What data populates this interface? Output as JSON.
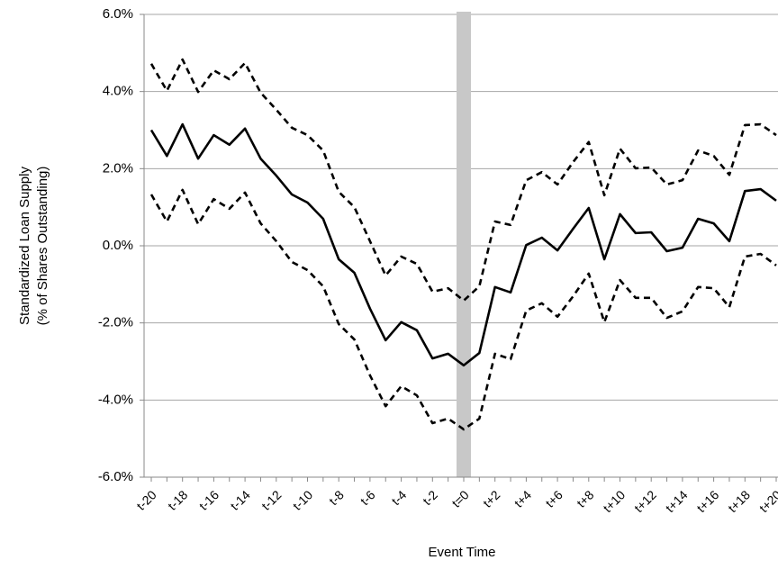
{
  "chart_data": {
    "type": "line",
    "xlabel": "Event Time",
    "ylabel": [
      "Standardized Loan Supply",
      "(% of Shares Outstanding)"
    ],
    "categories": [
      "t-20",
      null,
      "t-18",
      null,
      "t-16",
      null,
      "t-14",
      null,
      "t-12",
      null,
      "t-10",
      null,
      "t-8",
      null,
      "t-6",
      null,
      "t-4",
      null,
      "t-2",
      null,
      "t=0",
      null,
      "t+2",
      null,
      "t+4",
      null,
      "t+6",
      null,
      "t+8",
      null,
      "t+10",
      null,
      "t+12",
      null,
      "t+14",
      null,
      "t+16",
      null,
      "t+18",
      null,
      "t+20"
    ],
    "series": [
      {
        "color": "#000000",
        "dashed": false,
        "values": [
          3.0,
          2.33,
          3.15,
          2.26,
          2.87,
          2.62,
          3.04,
          2.26,
          1.82,
          1.33,
          1.12,
          0.7,
          -0.35,
          -0.7,
          -1.63,
          -2.45,
          -1.98,
          -2.19,
          -2.92,
          -2.8,
          -3.1,
          -2.78,
          -1.07,
          -1.21,
          0.02,
          0.21,
          -0.12,
          0.44,
          0.98,
          -0.35,
          0.82,
          0.33,
          0.35,
          -0.14,
          -0.05,
          0.7,
          0.58,
          0.12,
          1.42,
          1.47,
          1.17
        ]
      },
      {
        "color": "#000000",
        "dashed": true,
        "values": [
          4.72,
          4.02,
          4.83,
          3.99,
          4.55,
          4.32,
          4.74,
          3.97,
          3.53,
          3.06,
          2.87,
          2.47,
          1.4,
          1.0,
          0.12,
          -0.77,
          -0.28,
          -0.47,
          -1.19,
          -1.1,
          -1.42,
          -1.05,
          0.63,
          0.54,
          1.7,
          1.91,
          1.59,
          2.17,
          2.69,
          1.31,
          2.52,
          2.01,
          2.03,
          1.59,
          1.7,
          2.47,
          2.33,
          1.84,
          3.13,
          3.15,
          2.87
        ]
      },
      {
        "color": "#000000",
        "dashed": true,
        "values": [
          1.33,
          0.63,
          1.45,
          0.56,
          1.21,
          0.96,
          1.38,
          0.58,
          0.12,
          -0.42,
          -0.63,
          -1.05,
          -2.03,
          -2.43,
          -3.36,
          -4.16,
          -3.64,
          -3.88,
          -4.6,
          -4.48,
          -4.76,
          -4.48,
          -2.8,
          -2.94,
          -1.68,
          -1.49,
          -1.84,
          -1.31,
          -0.72,
          -1.98,
          -0.89,
          -1.35,
          -1.35,
          -1.87,
          -1.7,
          -1.07,
          -1.1,
          -1.59,
          -0.28,
          -0.21,
          -0.51
        ]
      }
    ],
    "ylim": [
      -6,
      6
    ],
    "yticks": [
      {
        "value": -6,
        "label": "-6.0%"
      },
      {
        "value": -4,
        "label": "-4.0%"
      },
      {
        "value": -2,
        "label": "-2.0%"
      },
      {
        "value": 0,
        "label": "0.0%"
      },
      {
        "value": 2,
        "label": "2.0%"
      },
      {
        "value": 4,
        "label": "4.0%"
      },
      {
        "value": 6,
        "label": "6.0%"
      }
    ],
    "grid": true
  }
}
